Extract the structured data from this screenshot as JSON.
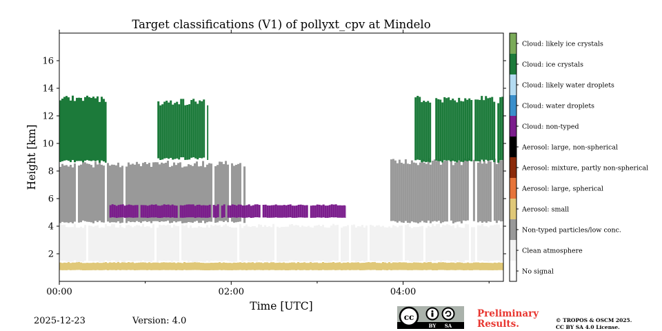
{
  "chart_data": {
    "type": "heatmap",
    "title": "Target classifications (V1) of pollyxt_cpv at Mindelo",
    "xlabel": "Time [UTC]",
    "ylabel": "Height [km]",
    "xlim": [
      0,
      310
    ],
    "ylim": [
      0,
      18
    ],
    "xticks": [
      {
        "value": 0,
        "label": "00:00"
      },
      {
        "value": 120,
        "label": "02:00"
      },
      {
        "value": 240,
        "label": "04:00"
      }
    ],
    "yticks": [
      {
        "value": 2,
        "label": "2"
      },
      {
        "value": 4,
        "label": "4"
      },
      {
        "value": 6,
        "label": "6"
      },
      {
        "value": 8,
        "label": "8"
      },
      {
        "value": 10,
        "label": "10"
      },
      {
        "value": 12,
        "label": "12"
      },
      {
        "value": 14,
        "label": "14"
      },
      {
        "value": 16,
        "label": "16"
      }
    ],
    "classes": [
      {
        "name": "No signal",
        "color": "#ffffff"
      },
      {
        "name": "Clean atmosphere",
        "color": "#f2f2f2"
      },
      {
        "name": "Non-typed particles/low conc.",
        "color": "#999999"
      },
      {
        "name": "Aerosol: small",
        "color": "#e0c878"
      },
      {
        "name": "Aerosol: large, spherical",
        "color": "#e6743a"
      },
      {
        "name": "Aerosol: mixture, partly non-spherical",
        "color": "#8b2a0a"
      },
      {
        "name": "Aerosol: large, non-spherical",
        "color": "#000000"
      },
      {
        "name": "Cloud: non-typed",
        "color": "#7b1d8c"
      },
      {
        "name": "Cloud: water droplets",
        "color": "#3a8fcb"
      },
      {
        "name": "Cloud: likely water droplets",
        "color": "#b5dcf2"
      },
      {
        "name": "Cloud: ice crystals",
        "color": "#1c7a3a"
      },
      {
        "name": "Cloud: likely ice crystals",
        "color": "#7aaa58"
      }
    ],
    "layers": [
      {
        "class": "Aerosol: small",
        "t_start": 0,
        "t_end": 310,
        "z_bottom": 0.8,
        "z_top": 1.4
      },
      {
        "class": "Clean atmosphere",
        "t_start": 0,
        "t_end": 310,
        "z_bottom": 1.4,
        "z_top": 4.2
      },
      {
        "class": "Non-typed particles/low conc.",
        "t_start": 0,
        "t_end": 130,
        "z_bottom": 4.2,
        "z_top": 8.8
      },
      {
        "class": "Cloud: ice crystals",
        "t_start": 0,
        "t_end": 33,
        "z_bottom": 8.6,
        "z_top": 13.6
      },
      {
        "class": "Cloud: ice crystals",
        "t_start": 67,
        "t_end": 104,
        "z_bottom": 8.8,
        "z_top": 13.3
      },
      {
        "class": "Cloud: non-typed",
        "t_start": 35,
        "t_end": 200,
        "z_bottom": 4.6,
        "z_top": 5.6
      },
      {
        "class": "Non-typed particles/low conc.",
        "t_start": 231,
        "t_end": 310,
        "z_bottom": 4.2,
        "z_top": 9.0
      },
      {
        "class": "Cloud: ice crystals",
        "t_start": 248,
        "t_end": 310,
        "z_bottom": 8.6,
        "z_top": 13.5
      }
    ]
  },
  "colorbar_labels": [
    "Cloud: likely ice crystals",
    "Cloud: ice crystals",
    "Cloud: likely water droplets",
    "Cloud: water droplets",
    "Cloud: non-typed",
    "Aerosol: large, non-spherical",
    "Aerosol: mixture, partly non-spherical",
    "Aerosol: large, spherical",
    "Aerosol: small",
    "Non-typed particles/low conc.",
    "Clean atmosphere",
    "No signal"
  ],
  "footer": {
    "date": "2025-12-23",
    "version": "Version: 4.0",
    "preliminary_line1": "Preliminary",
    "preliminary_line2": "Results.",
    "copyright_line1": "© TROPOS & OSCM 2025.",
    "copyright_line2": "CC BY SA 4.0 License.",
    "cc_label": "cc",
    "cc_by": "BY",
    "cc_sa": "SA"
  }
}
